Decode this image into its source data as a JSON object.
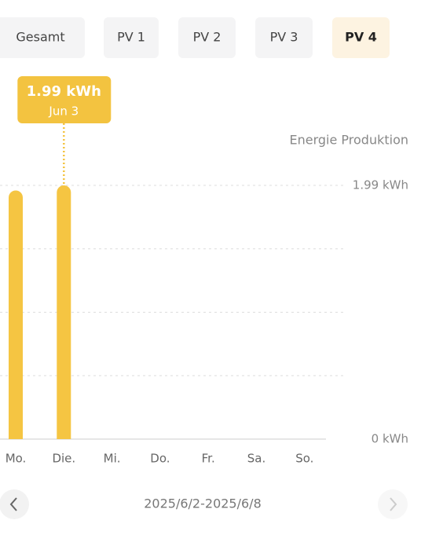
{
  "tabs": [
    "Gesamt",
    "PV 1",
    "PV 2",
    "PV 3",
    "PV 4"
  ],
  "selected_tab": 4,
  "chart_data": {
    "type": "bar",
    "y_label": "Energie Produktion",
    "categories": [
      "Mo.",
      "Die.",
      "Mi.",
      "Do.",
      "Fr.",
      "Sa.",
      "So."
    ],
    "values": [
      1.95,
      1.99,
      0,
      0,
      0,
      0,
      0
    ],
    "value_labels": [
      null,
      "1.99 kWh",
      null,
      null,
      null,
      null,
      null
    ],
    "tooltip_date": "Jun 3",
    "color": "#f5c542",
    "ylim": [
      0,
      1.99
    ],
    "yticks": [
      {
        "value": 0,
        "label": "0 kWh"
      },
      {
        "value": 1.99,
        "label": "1.99 kWh"
      }
    ],
    "grid_divisions": 4,
    "grid": true
  },
  "footer": {
    "date_range": "2025/6/2-2025/6/8"
  }
}
